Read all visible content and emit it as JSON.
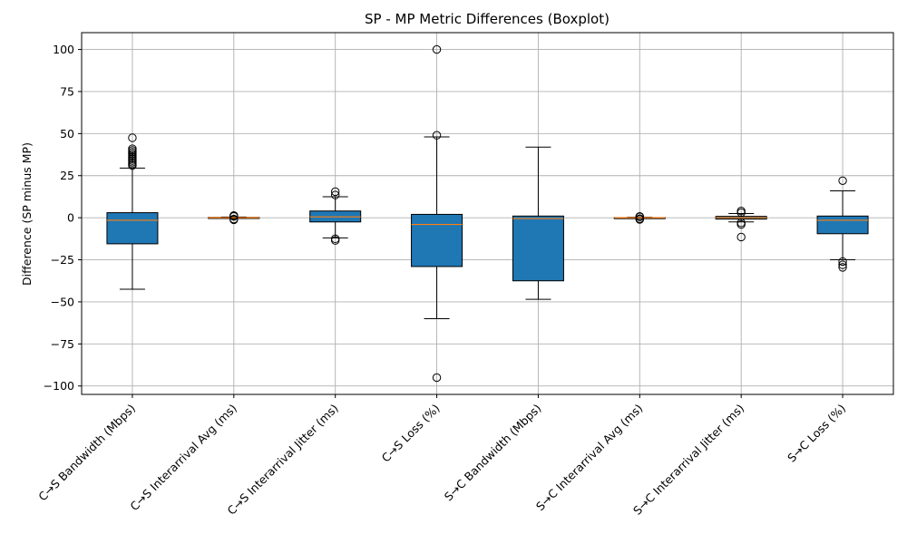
{
  "chart_data": {
    "type": "boxplot",
    "title": "SP - MP Metric Differences (Boxplot)",
    "xlabel": "",
    "ylabel": "Difference (SP minus MP)",
    "ylim": [
      -105,
      110
    ],
    "yticks": [
      100,
      75,
      50,
      25,
      0,
      -25,
      -50,
      -75,
      -100
    ],
    "ytick_labels": [
      "100",
      "75",
      "50",
      "25",
      "0",
      "−25",
      "−50",
      "−75",
      "−100"
    ],
    "grid": true,
    "colors": {
      "box_fill": "#1f77b4",
      "median": "#ff7f0e",
      "grid": "#b0b0b0",
      "line": "#000000"
    },
    "categories": [
      "C→S Bandwidth (Mbps)",
      "C→S Interarrival Avg (ms)",
      "C→S Interarrival Jitter (ms)",
      "C→S Loss (%)",
      "S→C Bandwidth (Mbps)",
      "S→C Interarrival Avg (ms)",
      "S→C Interarrival Jitter (ms)",
      "S→C Loss (%)"
    ],
    "boxes": [
      {
        "whisker_low": -42.5,
        "q1": -15.5,
        "median": -1.5,
        "q3": 3.0,
        "whisker_high": 29.5,
        "outliers": [
          31,
          32,
          33,
          34,
          35,
          36,
          37,
          38,
          39,
          40,
          41,
          47.5
        ]
      },
      {
        "whisker_low": -0.4,
        "q1": -0.2,
        "median": 0.0,
        "q3": 0.2,
        "whisker_high": 0.4,
        "outliers": [
          -1.2,
          -0.8,
          0.8,
          1.0,
          1.3
        ]
      },
      {
        "whisker_low": -12.0,
        "q1": -2.5,
        "median": 0.5,
        "q3": 4.0,
        "whisker_high": 12.5,
        "outliers": [
          -13.5,
          -12.5,
          13.5,
          15.5
        ]
      },
      {
        "whisker_low": -60.0,
        "q1": -29.0,
        "median": -4.0,
        "q3": 2.0,
        "whisker_high": 48.0,
        "outliers": [
          -95.0,
          49.0,
          100.0
        ]
      },
      {
        "whisker_low": -48.5,
        "q1": -37.5,
        "median": -0.5,
        "q3": 1.0,
        "whisker_high": 42.0,
        "outliers": []
      },
      {
        "whisker_low": -0.3,
        "q1": -0.1,
        "median": 0.0,
        "q3": 0.1,
        "whisker_high": 0.3,
        "outliers": [
          -1.0,
          -0.6,
          0.5,
          0.8
        ]
      },
      {
        "whisker_low": -2.5,
        "q1": -0.8,
        "median": 0.0,
        "q3": 0.8,
        "whisker_high": 2.5,
        "outliers": [
          -11.5,
          -4.0,
          -3.0,
          3.0,
          4.0
        ]
      },
      {
        "whisker_low": -25.0,
        "q1": -9.5,
        "median": -1.5,
        "q3": 1.0,
        "whisker_high": 16.0,
        "outliers": [
          -29.5,
          -28.0,
          -26.0,
          22.0
        ]
      }
    ]
  }
}
